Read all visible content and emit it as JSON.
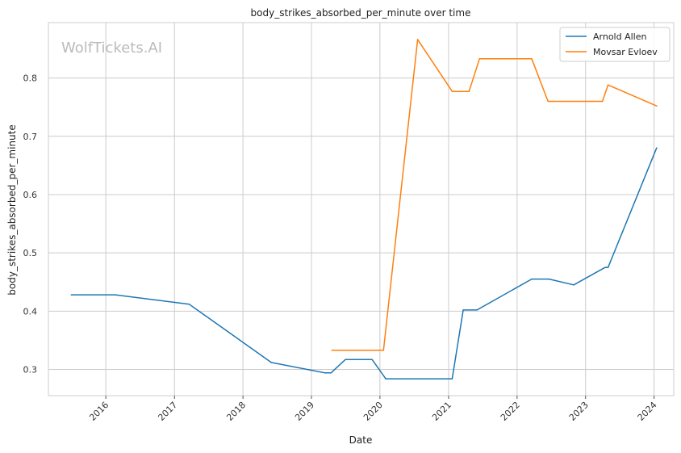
{
  "chart_data": {
    "type": "line",
    "title": "body_strikes_absorbed_per_minute over time",
    "xlabel": "Date",
    "ylabel": "body_strikes_absorbed_per_minute",
    "watermark": "WolfTickets.AI",
    "x_axis_type": "date",
    "xlim": [
      "2015-03-01",
      "2024-04-15"
    ],
    "ylim": [
      0.255,
      0.895
    ],
    "x_ticks": [
      "2016",
      "2017",
      "2018",
      "2019",
      "2020",
      "2021",
      "2022",
      "2023",
      "2024"
    ],
    "y_ticks": [
      "0.3",
      "0.4",
      "0.5",
      "0.6",
      "0.7",
      "0.8"
    ],
    "grid": true,
    "legend_position": "top-right",
    "series": [
      {
        "name": "Arnold Allen",
        "color": "#1f77b4",
        "points": [
          {
            "x": "2015-07-01",
            "y": 0.428
          },
          {
            "x": "2016-02-20",
            "y": 0.428
          },
          {
            "x": "2017-03-20",
            "y": 0.412
          },
          {
            "x": "2018-06-01",
            "y": 0.312
          },
          {
            "x": "2019-03-15",
            "y": 0.294
          },
          {
            "x": "2019-04-15",
            "y": 0.294
          },
          {
            "x": "2019-07-01",
            "y": 0.317
          },
          {
            "x": "2019-11-20",
            "y": 0.317
          },
          {
            "x": "2020-02-01",
            "y": 0.284
          },
          {
            "x": "2021-01-20",
            "y": 0.284
          },
          {
            "x": "2021-03-20",
            "y": 0.402
          },
          {
            "x": "2021-06-01",
            "y": 0.402
          },
          {
            "x": "2022-03-20",
            "y": 0.455
          },
          {
            "x": "2022-06-20",
            "y": 0.455
          },
          {
            "x": "2022-10-30",
            "y": 0.445
          },
          {
            "x": "2023-04-15",
            "y": 0.475
          },
          {
            "x": "2023-05-01",
            "y": 0.475
          },
          {
            "x": "2024-01-15",
            "y": 0.68
          }
        ]
      },
      {
        "name": "Movsar Evloev",
        "color": "#ff7f0e",
        "points": [
          {
            "x": "2019-04-20",
            "y": 0.333
          },
          {
            "x": "2020-01-20",
            "y": 0.333
          },
          {
            "x": "2020-07-20",
            "y": 0.866
          },
          {
            "x": "2021-01-20",
            "y": 0.777
          },
          {
            "x": "2021-04-20",
            "y": 0.777
          },
          {
            "x": "2021-06-15",
            "y": 0.833
          },
          {
            "x": "2022-03-20",
            "y": 0.833
          },
          {
            "x": "2022-06-15",
            "y": 0.76
          },
          {
            "x": "2023-04-01",
            "y": 0.76
          },
          {
            "x": "2023-05-01",
            "y": 0.788
          },
          {
            "x": "2024-01-15",
            "y": 0.752
          }
        ]
      }
    ]
  }
}
